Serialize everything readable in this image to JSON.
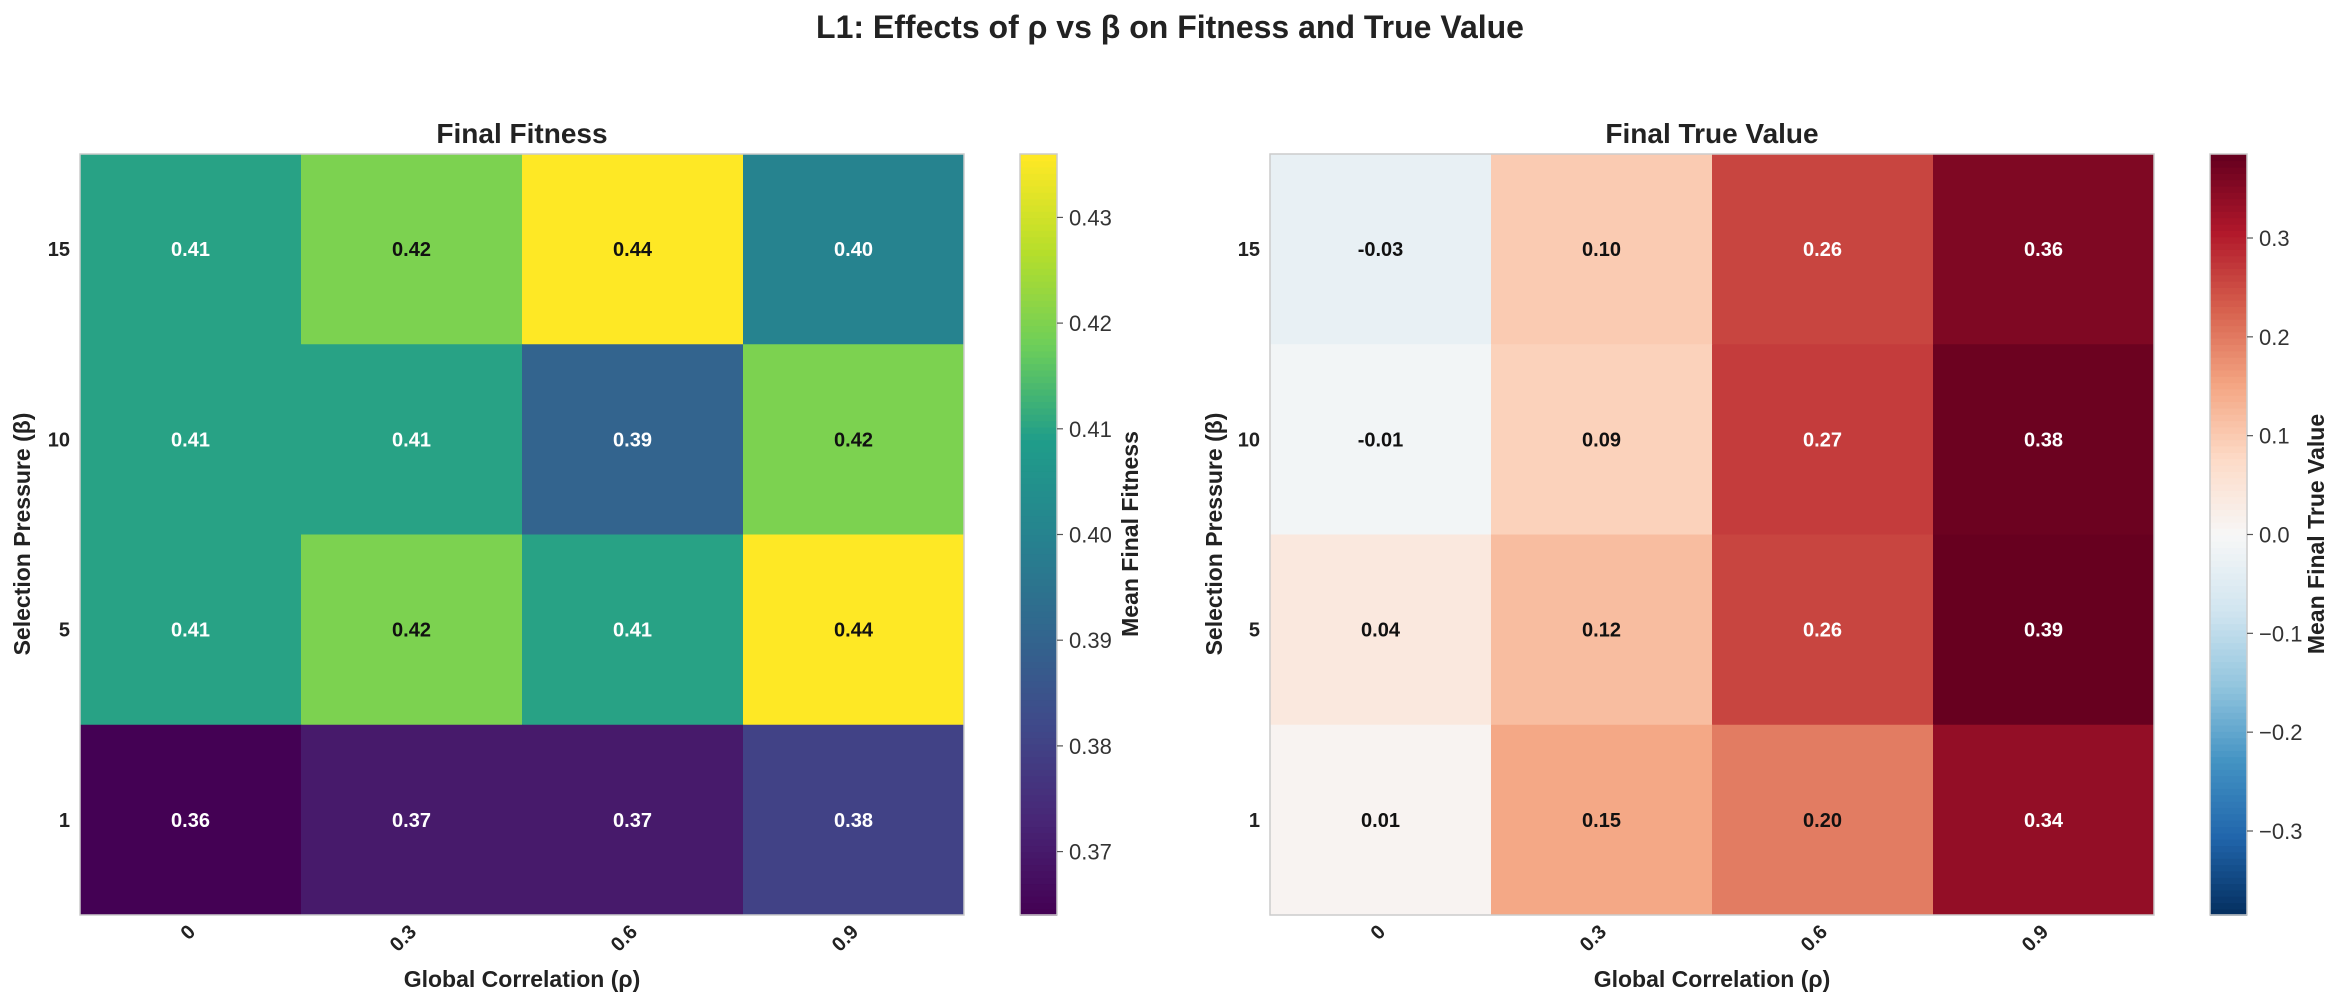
{
  "title": "L1: Effects of ρ vs β on Fitness and True Value",
  "chart_data": [
    {
      "type": "heatmap",
      "title": "Final Fitness",
      "xlabel": "Global Correlation (ρ)",
      "ylabel": "Selection Pressure (β)",
      "x_categories": [
        "0",
        "0.3",
        "0.6",
        "0.9"
      ],
      "y_categories": [
        "15",
        "10",
        "5",
        "1"
      ],
      "values": [
        [
          0.41,
          0.42,
          0.44,
          0.4
        ],
        [
          0.41,
          0.41,
          0.39,
          0.42
        ],
        [
          0.41,
          0.42,
          0.41,
          0.44
        ],
        [
          0.36,
          0.37,
          0.37,
          0.38
        ]
      ],
      "value_labels": [
        [
          "0.41",
          "0.42",
          "0.44",
          "0.40"
        ],
        [
          "0.41",
          "0.41",
          "0.39",
          "0.42"
        ],
        [
          "0.41",
          "0.42",
          "0.41",
          "0.44"
        ],
        [
          "0.36",
          "0.37",
          "0.37",
          "0.38"
        ]
      ],
      "colormap": "viridis",
      "colorbar": {
        "label": "Mean Final Fitness",
        "range": [
          0.364,
          0.436
        ],
        "ticks": [
          "0.37",
          "0.38",
          "0.39",
          "0.40",
          "0.41",
          "0.42",
          "0.43"
        ]
      }
    },
    {
      "type": "heatmap",
      "title": "Final True Value",
      "xlabel": "Global Correlation (ρ)",
      "ylabel": "Selection Pressure (β)",
      "x_categories": [
        "0",
        "0.3",
        "0.6",
        "0.9"
      ],
      "y_categories": [
        "15",
        "10",
        "5",
        "1"
      ],
      "values": [
        [
          -0.03,
          0.1,
          0.26,
          0.36
        ],
        [
          -0.01,
          0.09,
          0.27,
          0.38
        ],
        [
          0.04,
          0.12,
          0.26,
          0.39
        ],
        [
          0.01,
          0.15,
          0.2,
          0.34
        ]
      ],
      "value_labels": [
        [
          "-0.03",
          "0.10",
          "0.26",
          "0.36"
        ],
        [
          "-0.01",
          "0.09",
          "0.27",
          "0.38"
        ],
        [
          "0.04",
          "0.12",
          "0.26",
          "0.39"
        ],
        [
          "0.01",
          "0.15",
          "0.20",
          "0.34"
        ]
      ],
      "colormap": "RdBu_r",
      "colorbar": {
        "label": "Mean Final True Value",
        "range": [
          -0.385,
          0.385
        ],
        "ticks": [
          "−0.3",
          "−0.2",
          "−0.1",
          "0.0",
          "0.1",
          "0.2",
          "0.3"
        ]
      }
    }
  ]
}
